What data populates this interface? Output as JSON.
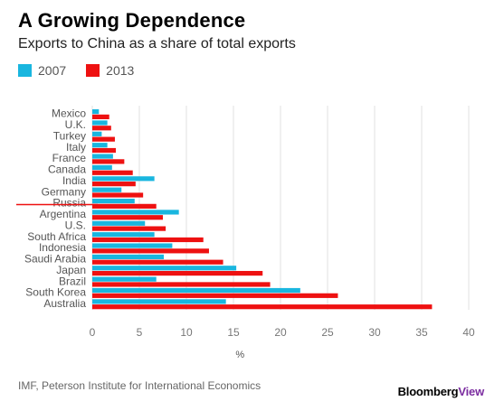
{
  "header": {
    "title": "A Growing Dependence",
    "subtitle": "Exports to China as a share of total exports"
  },
  "legend": {
    "items": [
      {
        "label": "2007",
        "color": "#19b6df"
      },
      {
        "label": "2013",
        "color": "#ee1111"
      }
    ]
  },
  "footer": {
    "source": "IMF, Peterson Institute for International Economics",
    "brand_main": "Bloomberg",
    "brand_accent": "View"
  },
  "chart_data": {
    "type": "bar",
    "orientation": "horizontal",
    "title": "A Growing Dependence",
    "subtitle": "Exports to China as a share of total exports",
    "xlabel": "%",
    "ylabel": "",
    "xlim": [
      0,
      40
    ],
    "xticks": [
      0,
      5,
      10,
      15,
      20,
      25,
      30,
      35,
      40
    ],
    "grid": true,
    "legend_position": "top-left",
    "categories": [
      "Mexico",
      "U.K.",
      "Turkey",
      "Italy",
      "France",
      "Canada",
      "India",
      "Germany",
      "Russia",
      "Argentina",
      "U.S.",
      "South Africa",
      "Indonesia",
      "Saudi Arabia",
      "Japan",
      "Brazil",
      "South Korea",
      "Australia"
    ],
    "series": [
      {
        "name": "2007",
        "color": "#19b6df",
        "values": [
          0.7,
          1.6,
          1.0,
          1.6,
          2.2,
          2.1,
          6.6,
          3.1,
          4.5,
          9.2,
          5.6,
          6.6,
          8.5,
          7.6,
          15.3,
          6.8,
          22.1,
          14.2
        ]
      },
      {
        "name": "2013",
        "color": "#ee1111",
        "values": [
          1.8,
          2.0,
          2.4,
          2.5,
          3.4,
          4.3,
          4.6,
          5.4,
          6.8,
          7.5,
          7.8,
          11.8,
          12.4,
          13.9,
          18.1,
          18.9,
          26.1,
          36.1
        ]
      }
    ],
    "annotations": [
      {
        "type": "reference-line",
        "target": "Russia",
        "color": "#ee1111"
      }
    ]
  }
}
